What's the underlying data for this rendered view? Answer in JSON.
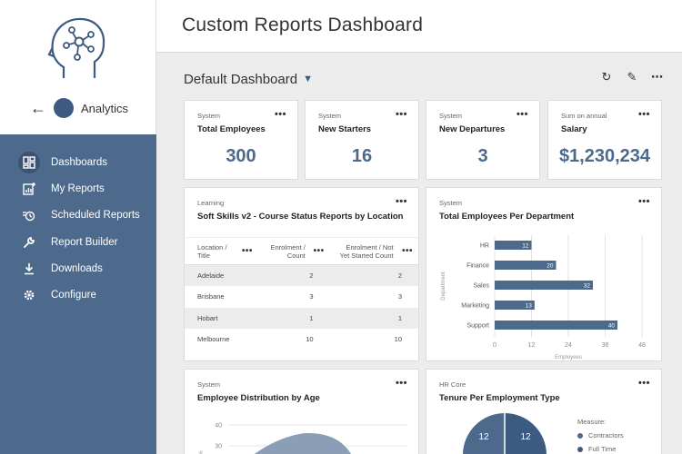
{
  "app": {
    "name": "Analytics"
  },
  "sidebar": {
    "items": [
      {
        "label": "Dashboards",
        "icon": "dashboard-icon",
        "active": true
      },
      {
        "label": "My Reports",
        "icon": "report-chart-icon"
      },
      {
        "label": "Scheduled Reports",
        "icon": "scheduled-clock-icon"
      },
      {
        "label": "Report Builder",
        "icon": "wrench-icon"
      },
      {
        "label": "Downloads",
        "icon": "download-icon"
      },
      {
        "label": "Configure",
        "icon": "gear-icon"
      }
    ]
  },
  "header": {
    "title": "Custom Reports Dashboard"
  },
  "dashboard": {
    "name": "Default Dashboard"
  },
  "kpis": [
    {
      "source": "System",
      "title": "Total Employees",
      "value": "300"
    },
    {
      "source": "System",
      "title": "New Starters",
      "value": "16"
    },
    {
      "source": "System",
      "title": "New Departures",
      "value": "3"
    },
    {
      "source": "Sum on annual",
      "title": "Salary",
      "value": "$1,230,234"
    }
  ],
  "soft_skills": {
    "source": "Learning",
    "title": "Soft Skills v2 - Course Status Reports by Location",
    "columns": [
      "Location / Title",
      "Enrolment / Count",
      "Enrolment / Not Yet Started Count"
    ],
    "rows": [
      [
        "Adelaide",
        "2",
        "2"
      ],
      [
        "Brisbane",
        "3",
        "3"
      ],
      [
        "Hobart",
        "1",
        "1"
      ],
      [
        "Melbourne",
        "10",
        "10"
      ]
    ]
  },
  "dept_chart": {
    "source": "System",
    "title": "Total Employees Per Department"
  },
  "age_chart": {
    "source": "System",
    "title": "Employee Distribution by Age"
  },
  "tenure_chart": {
    "source": "HR Core",
    "title": "Tenure Per Employment Type",
    "measure_label": "Measure:",
    "legend": [
      "Contractors",
      "Full Time"
    ]
  },
  "chart_data": [
    {
      "type": "bar",
      "orientation": "horizontal",
      "title": "Total Employees Per Department",
      "categories": [
        "HR",
        "Finance",
        "Sales",
        "Marketing",
        "Support"
      ],
      "values": [
        12,
        20,
        32,
        13,
        40
      ],
      "ylabel": "Department",
      "xlabel": "Employees",
      "xticks": [
        0,
        12,
        24,
        36,
        48
      ],
      "xlim": [
        0,
        48
      ],
      "color": "#4d6a8c",
      "grid": true
    },
    {
      "type": "area",
      "title": "Employee Distribution by Age",
      "ylabel": "%",
      "yticks": [
        30,
        40
      ],
      "peak_approx": 36,
      "color": "#7f93ad"
    },
    {
      "type": "pie",
      "title": "Tenure Per Employment Type",
      "series": [
        {
          "name": "Contractors",
          "label": "12"
        },
        {
          "name": "Full Time",
          "label": "12"
        }
      ],
      "colors": [
        "#4d6a8c",
        "#3d5a80"
      ]
    }
  ],
  "colors": {
    "accent": "#4d6a8c",
    "nav_bg": "#4d6a8c",
    "nav_active": "#3b5472"
  }
}
